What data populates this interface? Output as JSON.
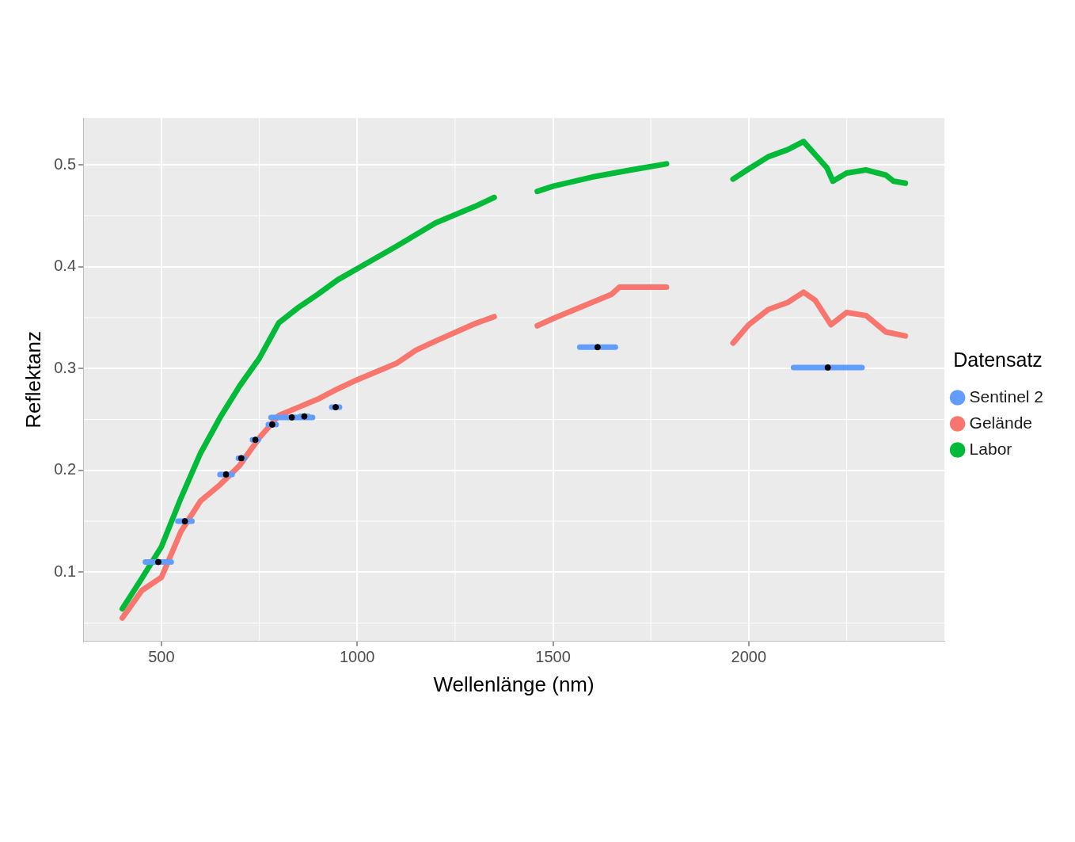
{
  "chart_data": {
    "type": "line",
    "x_label": "Wellenlänge (nm)",
    "y_label": "Reflektanz",
    "legend_title": "Datensatz",
    "legend": "right",
    "grid": true,
    "xlim": [
      300,
      2500
    ],
    "xticks": [
      500,
      1000,
      1500,
      2000
    ],
    "ylim": [
      0.032,
      0.546
    ],
    "yticks": [
      0.1,
      0.2,
      0.3,
      0.4,
      0.5
    ],
    "series": [
      {
        "name": "Gelände",
        "color": "#F8766D",
        "type": "line",
        "marker": "none",
        "x": [
          400,
          450,
          500,
          550,
          600,
          650,
          700,
          750,
          800,
          850,
          900,
          950,
          1000,
          1100,
          1150,
          1200,
          1300,
          1350,
          1400,
          1460,
          1500,
          1600,
          1650,
          1670,
          1700,
          1790,
          1880,
          1960,
          2000,
          2050,
          2100,
          2140,
          2170,
          2210,
          2250,
          2300,
          2350,
          2400
        ],
        "values": [
          0.055,
          0.082,
          0.095,
          0.14,
          0.17,
          0.186,
          0.205,
          0.232,
          0.254,
          0.262,
          0.27,
          0.28,
          0.289,
          0.305,
          0.318,
          0.327,
          0.344,
          0.351,
          null,
          0.342,
          0.349,
          0.365,
          0.373,
          0.38,
          0.38,
          0.38,
          null,
          0.325,
          0.343,
          0.358,
          0.365,
          0.375,
          0.367,
          0.343,
          0.355,
          0.352,
          0.336,
          0.332
        ]
      },
      {
        "name": "Labor",
        "color": "#00BA38",
        "type": "line",
        "marker": "none",
        "x": [
          400,
          450,
          500,
          550,
          600,
          650,
          700,
          750,
          800,
          850,
          900,
          950,
          1000,
          1100,
          1200,
          1300,
          1350,
          1400,
          1460,
          1500,
          1600,
          1700,
          1790,
          1880,
          1960,
          2000,
          2050,
          2100,
          2140,
          2200,
          2215,
          2250,
          2300,
          2350,
          2370,
          2400
        ],
        "values": [
          0.064,
          0.094,
          0.125,
          0.173,
          0.217,
          0.252,
          0.283,
          0.31,
          0.345,
          0.36,
          0.373,
          0.387,
          0.398,
          0.42,
          0.443,
          0.459,
          0.468,
          null,
          0.474,
          0.479,
          0.488,
          0.495,
          0.501,
          null,
          0.486,
          0.496,
          0.508,
          0.515,
          0.523,
          0.497,
          0.484,
          0.492,
          0.495,
          0.49,
          0.484,
          0.482
        ]
      },
      {
        "name": "Sentinel 2",
        "color": "#619CFF",
        "type": "interval",
        "marker": "circle",
        "x": [
          492,
          560,
          665,
          704,
          740,
          783,
          833,
          865,
          945,
          1614,
          2202
        ],
        "widths": [
          66,
          36,
          31,
          15,
          15,
          20,
          106,
          21,
          20,
          91,
          175
        ],
        "values": [
          0.11,
          0.15,
          0.196,
          0.212,
          0.23,
          0.245,
          0.252,
          0.253,
          0.262,
          0.321,
          0.301
        ]
      }
    ]
  }
}
